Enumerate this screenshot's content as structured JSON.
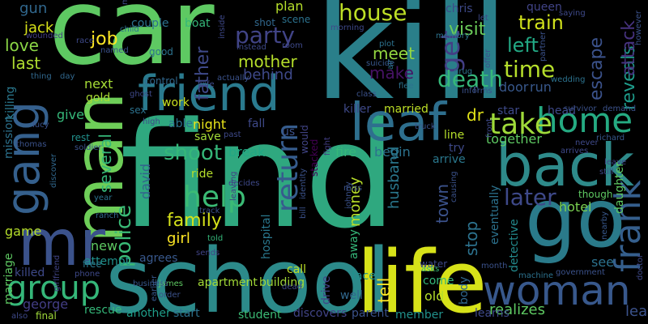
{
  "background": "#000000",
  "words": [
    {
      "text": "find",
      "color": "#2fa87f"
    },
    {
      "text": "kill",
      "color": "#2a7f8a"
    },
    {
      "text": "car",
      "color": "#5ec962"
    },
    {
      "text": "school",
      "color": "#2c8a8a"
    },
    {
      "text": "life",
      "color": "#d7e219"
    },
    {
      "text": "go",
      "color": "#2a7a8a"
    },
    {
      "text": "friend",
      "color": "#2a7a8e"
    },
    {
      "text": "back",
      "color": "#2e8a8a"
    },
    {
      "text": "leaf",
      "color": "#2e6f8e"
    },
    {
      "text": "man",
      "color": "#6ece58"
    },
    {
      "text": "gang",
      "color": "#35608d"
    },
    {
      "text": "mr",
      "color": "#3b528b"
    },
    {
      "text": "woman",
      "color": "#38588c"
    },
    {
      "text": "group",
      "color": "#35b779"
    },
    {
      "text": "home",
      "color": "#25ab82"
    },
    {
      "text": "help",
      "color": "#3bbb75"
    },
    {
      "text": "frank",
      "color": "#355f8d"
    },
    {
      "text": "take",
      "color": "#9fda3a"
    },
    {
      "text": "house",
      "color": "#bddf26"
    },
    {
      "text": "time",
      "color": "#b5de2b"
    },
    {
      "text": "get",
      "color": "#433e85"
    },
    {
      "text": "death",
      "color": "#35b779"
    },
    {
      "text": "return",
      "color": "#365c8d"
    },
    {
      "text": "party",
      "color": "#414487"
    },
    {
      "text": "later",
      "color": "#3e4989"
    },
    {
      "text": "police",
      "color": "#3aba76"
    },
    {
      "text": "shoot",
      "color": "#35b779"
    },
    {
      "text": "family",
      "color": "#d5e21a"
    },
    {
      "text": "visit",
      "color": "#6ccd5a"
    },
    {
      "text": "train",
      "color": "#d0e11c"
    },
    {
      "text": "left",
      "color": "#22a884"
    },
    {
      "text": "escape",
      "color": "#3b528b"
    },
    {
      "text": "reveals",
      "color": "#1e9b8a"
    },
    {
      "text": "attack",
      "color": "#46327e"
    },
    {
      "text": "job",
      "color": "#fde725"
    },
    {
      "text": "gun",
      "color": "#31688e"
    },
    {
      "text": "jack",
      "color": "#d8e219"
    },
    {
      "text": "love",
      "color": "#8bd646"
    },
    {
      "text": "last",
      "color": "#addc30"
    },
    {
      "text": "next",
      "color": "#a5db36"
    },
    {
      "text": "gold",
      "color": "#a8db34"
    },
    {
      "text": "several",
      "color": "#35b779"
    },
    {
      "text": "mother",
      "color": "#b5de2b"
    },
    {
      "text": "father",
      "color": "#3e4989"
    },
    {
      "text": "meet",
      "color": "#93d741"
    },
    {
      "text": "make",
      "color": "#471365"
    },
    {
      "text": "behind",
      "color": "#3e4989"
    },
    {
      "text": "plan",
      "color": "#b5de2b"
    },
    {
      "text": "night",
      "color": "#eae51a"
    },
    {
      "text": "break",
      "color": "#22a884"
    },
    {
      "text": "fire",
      "color": "#35b779"
    },
    {
      "text": "begin",
      "color": "#2c728e"
    },
    {
      "text": "together",
      "color": "#5ec962"
    },
    {
      "text": "town",
      "color": "#3b528b"
    },
    {
      "text": "stop",
      "color": "#2c728e"
    },
    {
      "text": "see",
      "color": "#2c728e"
    },
    {
      "text": "money",
      "color": "#b8de29"
    },
    {
      "text": "husband",
      "color": "#2a788e"
    },
    {
      "text": "tell",
      "color": "#fde725"
    },
    {
      "text": "david",
      "color": "#33638d"
    },
    {
      "text": "girl",
      "color": "#fde725"
    },
    {
      "text": "new",
      "color": "#5ec962"
    },
    {
      "text": "george",
      "color": "#433e85"
    },
    {
      "text": "game",
      "color": "#b5de2b"
    },
    {
      "text": "dr",
      "color": "#e2e418"
    },
    {
      "text": "hotel",
      "color": "#7ad151"
    },
    {
      "text": "realizes",
      "color": "#5ec962"
    },
    {
      "text": "lead",
      "color": "#3b528b"
    },
    {
      "text": "detective",
      "color": "#238a8d"
    },
    {
      "text": "eventually",
      "color": "#2c728e"
    },
    {
      "text": "daughter",
      "color": "#5ec962"
    },
    {
      "text": "apartment",
      "color": "#a2da37"
    },
    {
      "text": "building",
      "color": "#a2da37"
    },
    {
      "text": "body",
      "color": "#31688e"
    },
    {
      "text": "learns",
      "color": "#3e4989"
    },
    {
      "text": "discovers",
      "color": "#414487"
    },
    {
      "text": "student",
      "color": "#3bbb75"
    },
    {
      "text": "member",
      "color": "#21918c"
    },
    {
      "text": "parent",
      "color": "#3b528b"
    },
    {
      "text": "old",
      "color": "#b5de2b"
    },
    {
      "text": "another",
      "color": "#1f9e89"
    },
    {
      "text": "start",
      "color": "#2c728e"
    },
    {
      "text": "rescue",
      "color": "#35b779"
    },
    {
      "text": "final",
      "color": "#9fda3a"
    },
    {
      "text": "marriage",
      "color": "#5ec962"
    },
    {
      "text": "killed",
      "color": "#3e4989"
    },
    {
      "text": "attempt",
      "color": "#21918c"
    },
    {
      "text": "free",
      "color": "#2a788e"
    },
    {
      "text": "agrees",
      "color": "#38588c"
    },
    {
      "text": "ride",
      "color": "#b5de2b"
    },
    {
      "text": "save",
      "color": "#a2da37"
    },
    {
      "text": "fall",
      "color": "#3e4989"
    },
    {
      "text": "us",
      "color": "#3b528b"
    },
    {
      "text": "work",
      "color": "#cae11f"
    },
    {
      "text": "able",
      "color": "#2c728e"
    },
    {
      "text": "killer",
      "color": "#3e4989"
    },
    {
      "text": "married",
      "color": "#bddf26"
    },
    {
      "text": "mission",
      "color": "#2c728e"
    },
    {
      "text": "killing",
      "color": "#2a788e"
    },
    {
      "text": "give",
      "color": "#35b779"
    },
    {
      "text": "rest",
      "color": "#21918c"
    },
    {
      "text": "door",
      "color": "#38588c"
    },
    {
      "text": "run",
      "color": "#38588c"
    },
    {
      "text": "star",
      "color": "#3e4989"
    },
    {
      "text": "head",
      "color": "#3e4989"
    },
    {
      "text": "drive",
      "color": "#414487"
    },
    {
      "text": "face",
      "color": "#21918c"
    },
    {
      "text": "well",
      "color": "#31688e"
    },
    {
      "text": "come",
      "color": "#35b779"
    },
    {
      "text": "water",
      "color": "#3e4989"
    },
    {
      "text": "call",
      "color": "#bddf26"
    },
    {
      "text": "hospital",
      "color": "#2a788e"
    },
    {
      "text": "line",
      "color": "#b5de2b"
    },
    {
      "text": "try",
      "color": "#3e4989"
    },
    {
      "text": "arrive",
      "color": "#2a788e"
    },
    {
      "text": "chris",
      "color": "#3e4989"
    },
    {
      "text": "queen",
      "color": "#414487"
    },
    {
      "text": "couple",
      "color": "#2c728e"
    },
    {
      "text": "boat",
      "color": "#35b779"
    },
    {
      "text": "good",
      "color": "#2c728e"
    },
    {
      "text": "shot",
      "color": "#31688e"
    },
    {
      "text": "scene",
      "color": "#2c728e"
    },
    {
      "text": "memory",
      "color": "#2c728e"
    },
    {
      "text": "plot",
      "color": "#2c728e"
    },
    {
      "text": "suicide",
      "color": "#38588c"
    },
    {
      "text": "air",
      "color": "#2c728e"
    },
    {
      "text": "drug",
      "color": "#2c728e"
    },
    {
      "text": "offer",
      "color": "#3b528b"
    },
    {
      "text": "class",
      "color": "#3b528b"
    },
    {
      "text": "informs",
      "color": "#3b528b"
    },
    {
      "text": "flee",
      "color": "#2c728e"
    },
    {
      "text": "wedding",
      "color": "#2c728e"
    },
    {
      "text": "partner",
      "color": "#3b528b"
    },
    {
      "text": "saying",
      "color": "#3e4989"
    },
    {
      "text": "however",
      "color": "#3b528b"
    },
    {
      "text": "survivor",
      "color": "#3b528b"
    },
    {
      "text": "demand",
      "color": "#3b528b"
    },
    {
      "text": "richard",
      "color": "#38588c"
    },
    {
      "text": "leave",
      "color": "#414487"
    },
    {
      "text": "arrives",
      "color": "#3e4989"
    },
    {
      "text": "still",
      "color": "#3e4989"
    },
    {
      "text": "though",
      "color": "#5ec962"
    },
    {
      "text": "nearby",
      "color": "#38588c"
    },
    {
      "text": "doctor",
      "color": "#3e4989"
    },
    {
      "text": "machine",
      "color": "#2c728e"
    },
    {
      "text": "government",
      "color": "#3b528b"
    },
    {
      "text": "month",
      "color": "#3b528b"
    },
    {
      "text": "asks",
      "color": "#35b779"
    },
    {
      "text": "truck",
      "color": "#3b528b"
    },
    {
      "text": "front",
      "color": "#3e4989"
    },
    {
      "text": "never",
      "color": "#3e4989"
    },
    {
      "text": "fight",
      "color": "#433e85"
    },
    {
      "text": "miss",
      "color": "#3b528b"
    },
    {
      "text": "track",
      "color": "#3b528b"
    },
    {
      "text": "decides",
      "color": "#3e4989"
    },
    {
      "text": "leaving",
      "color": "#433e85"
    },
    {
      "text": "told",
      "color": "#35b779"
    },
    {
      "text": "sends",
      "color": "#414487"
    },
    {
      "text": "earlier",
      "color": "#38588c"
    },
    {
      "text": "order",
      "color": "#3b528b"
    },
    {
      "text": "james",
      "color": "#5ec962"
    },
    {
      "text": "phone",
      "color": "#3e4989"
    },
    {
      "text": "business",
      "color": "#38588c"
    },
    {
      "text": "ranch",
      "color": "#31688e"
    },
    {
      "text": "year",
      "color": "#2c728e"
    },
    {
      "text": "girlfriend",
      "color": "#414487"
    },
    {
      "text": "also",
      "color": "#3e4989"
    },
    {
      "text": "thomas",
      "color": "#3b528b"
    },
    {
      "text": "discover",
      "color": "#31688e"
    },
    {
      "text": "soldier",
      "color": "#3b528b"
    },
    {
      "text": "lucy",
      "color": "#3b528b"
    },
    {
      "text": "high",
      "color": "#3e4989"
    },
    {
      "text": "sex",
      "color": "#2c728e"
    },
    {
      "text": "wife",
      "color": "#3e4989"
    },
    {
      "text": "ghost",
      "color": "#3e4989"
    },
    {
      "text": "control",
      "color": "#31688e"
    },
    {
      "text": "actually",
      "color": "#3b528b"
    },
    {
      "text": "past",
      "color": "#3e4989"
    },
    {
      "text": "inside",
      "color": "#3e4989"
    },
    {
      "text": "instead",
      "color": "#3e4989"
    },
    {
      "text": "room",
      "color": "#3e4989"
    },
    {
      "text": "morning",
      "color": "#3e4989"
    },
    {
      "text": "named",
      "color": "#3b528b"
    },
    {
      "text": "child",
      "color": "#2c728e"
    },
    {
      "text": "race",
      "color": "#3e4989"
    },
    {
      "text": "men",
      "color": "#3e4989"
    },
    {
      "text": "day",
      "color": "#31688e"
    },
    {
      "text": "wounded",
      "color": "#433e85"
    },
    {
      "text": "thing",
      "color": "#31688e"
    },
    {
      "text": "stacked",
      "color": "#440154"
    },
    {
      "text": "would",
      "color": "#414487"
    },
    {
      "text": "bill",
      "color": "#3b528b"
    },
    {
      "text": "identity",
      "color": "#3b528b"
    },
    {
      "text": "away",
      "color": "#35b779"
    },
    {
      "text": "johnny",
      "color": "#3b528b"
    },
    {
      "text": "causing",
      "color": "#3b528b"
    },
    {
      "text": "dead",
      "color": "#3e4989"
    },
    {
      "text": "let",
      "color": "#3e4989"
    },
    {
      "text": "n",
      "color": "#3b528b"
    }
  ]
}
